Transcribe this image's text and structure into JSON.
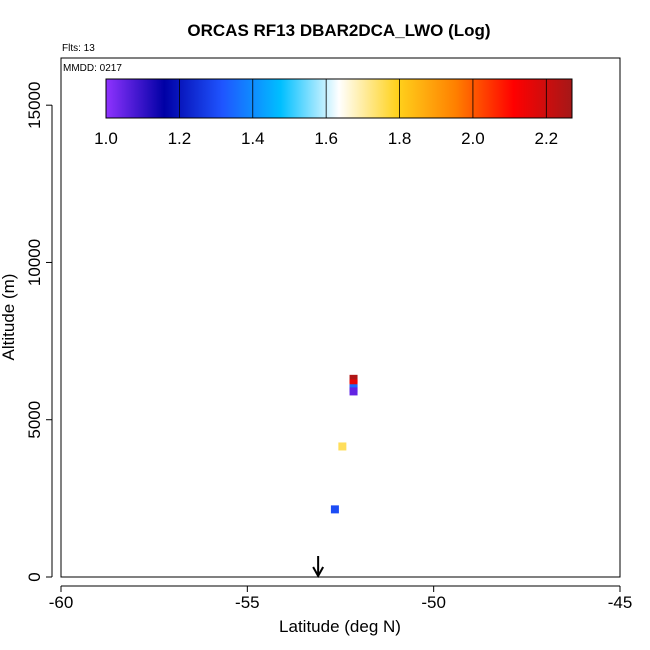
{
  "chart_data": {
    "type": "heatmap",
    "title": "ORCAS RF13 DBAR2DCA_LWO (Log)",
    "corner_label_top": "Flts: 13",
    "corner_label_inner": "MMDD: 0217",
    "xlabel": "Latitude (deg N)",
    "ylabel": "Altitude (m)",
    "xlim": [
      -60,
      -45
    ],
    "ylim": [
      0,
      16500
    ],
    "x_ticks": [
      -60,
      -55,
      -50,
      -45
    ],
    "y_ticks": [
      0,
      5000,
      10000,
      15000
    ],
    "colorbar": {
      "range": [
        1.0,
        2.27
      ],
      "ticks": [
        "1.0",
        "1.2",
        "1.4",
        "1.6",
        "1.8",
        "2.0",
        "2.2"
      ],
      "tick_values": [
        1.0,
        1.2,
        1.4,
        1.6,
        1.8,
        2.0,
        2.2
      ],
      "colors": [
        "#8f33ff",
        "#0000a5",
        "#1f55ff",
        "#00bfff",
        "#ffffff",
        "#ffd21c",
        "#ff8000",
        "#ff0000",
        "#a51818"
      ]
    },
    "marker": {
      "type": "arrow-down",
      "x": -53.1
    },
    "points": [
      {
        "x": -52.15,
        "y": 6300,
        "value": 2.25
      },
      {
        "x": -52.15,
        "y": 6150,
        "value": 2.15
      },
      {
        "x": -52.15,
        "y": 6000,
        "value": 1.35
      },
      {
        "x": -52.15,
        "y": 5900,
        "value": 1.05
      },
      {
        "x": -52.45,
        "y": 4150,
        "value": 1.75
      },
      {
        "x": -52.65,
        "y": 2150,
        "value": 1.3
      }
    ]
  }
}
